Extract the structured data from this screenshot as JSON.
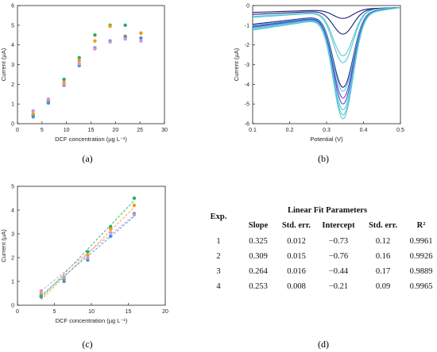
{
  "panel_labels": [
    "(a)",
    "(b)",
    "(c)",
    "(d)"
  ],
  "colors": {
    "exp1": "#27ae60",
    "exp2": "#f39c12",
    "exp3": "#3498db",
    "exp4": "#d98fd8",
    "cv_dark": "#1c1c7a",
    "cv_mid": "#5a4bd1",
    "cv_light": "#55c8d6"
  },
  "chart_data": [
    {
      "type": "scatter",
      "panel": "a",
      "xlabel": "DCF concentration (µg L⁻¹)",
      "ylabel": "Current (µA)",
      "xlim": [
        0,
        30
      ],
      "ylim": [
        0,
        6
      ],
      "xticks": [
        0,
        5,
        10,
        15,
        20,
        25,
        30
      ],
      "yticks": [
        0,
        1,
        2,
        3,
        4,
        5,
        6
      ],
      "x": [
        3.2,
        6.3,
        9.5,
        12.6,
        15.8,
        18.9,
        22.0,
        25.2
      ],
      "series": [
        {
          "values": [
            0.45,
            1.15,
            2.25,
            3.35,
            4.5,
            5.0,
            5.0,
            4.6
          ],
          "color_key": "exp1"
        },
        {
          "values": [
            0.5,
            1.2,
            2.1,
            3.2,
            4.2,
            4.95,
            4.45,
            4.6
          ],
          "color_key": "exp2"
        },
        {
          "values": [
            0.35,
            1.05,
            1.95,
            2.95,
            3.85,
            4.2,
            4.4,
            4.35
          ],
          "color_key": "exp3"
        },
        {
          "values": [
            0.65,
            1.25,
            2.0,
            3.05,
            3.8,
            4.15,
            4.3,
            4.2
          ],
          "color_key": "exp4"
        }
      ]
    },
    {
      "type": "line",
      "panel": "b",
      "xlabel": "Potential (V)",
      "ylabel": "Current (µA)",
      "xlim": [
        0.1,
        0.5
      ],
      "ylim": [
        -6,
        0
      ],
      "xticks": [
        0.1,
        0.2,
        0.3,
        0.4,
        0.5
      ],
      "yticks": [
        0,
        -1,
        -2,
        -3,
        -4,
        -5,
        -6
      ],
      "peak_potential": 0.345,
      "curves": [
        {
          "start": -0.35,
          "peak": -0.65,
          "color_key": "cv_dark"
        },
        {
          "start": -0.45,
          "peak": -1.45,
          "color_key": "cv_dark"
        },
        {
          "start": -0.55,
          "peak": -2.55,
          "color_key": "cv_light"
        },
        {
          "start": -0.6,
          "peak": -2.9,
          "color_key": "cv_light"
        },
        {
          "start": -0.95,
          "peak": -4.15,
          "color_key": "cv_dark"
        },
        {
          "start": -1.0,
          "peak": -4.35,
          "color_key": "cv_light"
        },
        {
          "start": -1.05,
          "peak": -4.7,
          "color_key": "cv_mid"
        },
        {
          "start": -1.1,
          "peak": -5.0,
          "color_key": "cv_mid"
        },
        {
          "start": -1.15,
          "peak": -5.3,
          "color_key": "cv_light"
        },
        {
          "start": -1.2,
          "peak": -5.55,
          "color_key": "cv_light"
        },
        {
          "start": -1.25,
          "peak": -5.75,
          "color_key": "cv_light"
        }
      ]
    },
    {
      "type": "scatter",
      "panel": "c",
      "xlabel": "DCF concentration (µg L⁻¹)",
      "ylabel": "Current (µA)",
      "xlim": [
        0,
        20
      ],
      "ylim": [
        0,
        5
      ],
      "xticks": [
        0,
        5,
        10,
        15,
        20
      ],
      "yticks": [
        0,
        1,
        2,
        3,
        4,
        5
      ],
      "x": [
        3.2,
        6.3,
        9.5,
        12.6,
        15.8
      ],
      "series": [
        {
          "values": [
            0.4,
            1.1,
            2.25,
            3.3,
            4.5
          ],
          "fit": [
            0.325,
            -0.73
          ],
          "color_key": "exp1"
        },
        {
          "values": [
            0.5,
            1.15,
            2.1,
            3.2,
            4.2
          ],
          "fit": [
            0.309,
            -0.76
          ],
          "color_key": "exp2"
        },
        {
          "values": [
            0.35,
            1.0,
            1.9,
            2.9,
            3.85
          ],
          "fit": [
            0.264,
            -0.44
          ],
          "color_key": "exp3"
        },
        {
          "values": [
            0.6,
            1.2,
            2.0,
            3.05,
            3.8
          ],
          "fit": [
            0.253,
            -0.21
          ],
          "color_key": "exp4"
        }
      ]
    },
    {
      "type": "table",
      "panel": "d",
      "title": "Linear Fit Parameters",
      "row_header": "Exp.",
      "columns": [
        "Slope",
        "Std. err.",
        "Intercept",
        "Std. err.",
        "R²"
      ],
      "rows": [
        {
          "exp": "1",
          "cells": [
            "0.325",
            "0.012",
            "−0.73",
            "0.12",
            "0.9961"
          ]
        },
        {
          "exp": "2",
          "cells": [
            "0.309",
            "0.015",
            "−0.76",
            "0.16",
            "0.9926"
          ]
        },
        {
          "exp": "3",
          "cells": [
            "0.264",
            "0.016",
            "−0.44",
            "0.17",
            "0.9889"
          ]
        },
        {
          "exp": "4",
          "cells": [
            "0.253",
            "0.008",
            "−0.21",
            "0.09",
            "0.9965"
          ]
        }
      ]
    }
  ]
}
